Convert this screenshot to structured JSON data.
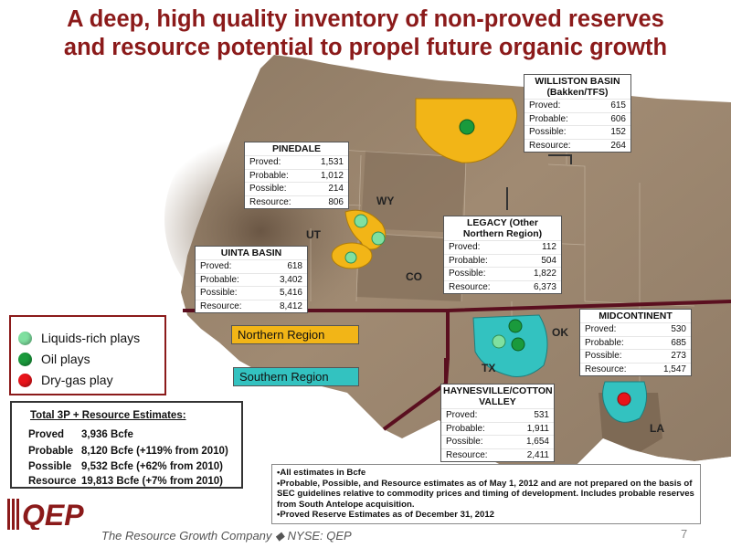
{
  "title_line1": "A deep, high quality inventory of non-proved reserves",
  "title_line2": "and resource potential to propel future organic growth",
  "basins": {
    "williston": {
      "name_line1": "WILLISTON BASIN",
      "name_line2": "(Bakken/TFS)",
      "rows": [
        {
          "label": "Proved:",
          "value": "615"
        },
        {
          "label": "Probable:",
          "value": "606"
        },
        {
          "label": "Possible:",
          "value": "152"
        },
        {
          "label": "Resource:",
          "value": "264"
        }
      ]
    },
    "pinedale": {
      "name_line1": "PINEDALE",
      "rows": [
        {
          "label": "Proved:",
          "value": "1,531"
        },
        {
          "label": "Probable:",
          "value": "1,012"
        },
        {
          "label": "Possible:",
          "value": "214"
        },
        {
          "label": "Resource:",
          "value": "806"
        }
      ]
    },
    "legacy": {
      "name_line1": "LEGACY (Other",
      "name_line2": "Northern Region)",
      "rows": [
        {
          "label": "Proved:",
          "value": "112"
        },
        {
          "label": "Probable:",
          "value": "504"
        },
        {
          "label": "Possible:",
          "value": "1,822"
        },
        {
          "label": "Resource:",
          "value": "6,373"
        }
      ]
    },
    "uinta": {
      "name_line1": "UINTA BASIN",
      "rows": [
        {
          "label": "Proved:",
          "value": "618"
        },
        {
          "label": "Probable:",
          "value": "3,402"
        },
        {
          "label": "Possible:",
          "value": "5,416"
        },
        {
          "label": "Resource:",
          "value": "8,412"
        }
      ]
    },
    "midcontinent": {
      "name_line1": "MIDCONTINENT",
      "rows": [
        {
          "label": "Proved:",
          "value": "530"
        },
        {
          "label": "Probable:",
          "value": "685"
        },
        {
          "label": "Possible:",
          "value": "273"
        },
        {
          "label": "Resource:",
          "value": "1,547"
        }
      ]
    },
    "haynesville": {
      "name_line1": "HAYNESVILLE/COTTON",
      "name_line2": "VALLEY",
      "rows": [
        {
          "label": "Proved:",
          "value": "531"
        },
        {
          "label": "Probable:",
          "value": "1,911"
        },
        {
          "label": "Possible:",
          "value": "1,654"
        },
        {
          "label": "Resource:",
          "value": "2,411"
        }
      ]
    }
  },
  "states": {
    "wy": "WY",
    "ut": "UT",
    "co": "CO",
    "ok": "OK",
    "tx": "TX",
    "la": "LA"
  },
  "legend": {
    "items": [
      {
        "label": "Liquids-rich plays",
        "color": "#7fe0a0"
      },
      {
        "label": "Oil plays",
        "color": "#1a9a3c"
      },
      {
        "label": "Dry-gas play",
        "color": "#e8141a"
      }
    ]
  },
  "regions": {
    "northern": {
      "label": "Northern Region",
      "color": "#f2b517"
    },
    "southern": {
      "label": "Southern Region",
      "color": "#33c2c0"
    }
  },
  "totals": {
    "title": "Total 3P + Resource Estimates:",
    "rows": [
      {
        "label": "Proved",
        "value": "3,936 Bcfe"
      },
      {
        "label": "Probable",
        "value": "8,120 Bcfe (+119% from 2010)"
      },
      {
        "label": "Possible",
        "value": "9,532 Bcfe (+62% from 2010)"
      },
      {
        "label": "Resource",
        "value": "19,813 Bcfe (+7% from 2010)"
      }
    ]
  },
  "notes": [
    "•All estimates in Bcfe",
    "•Probable, Possible, and Resource estimates as of May 1, 2012 and are not prepared on the basis of SEC guidelines relative to commodity prices and timing of development. Includes probable reserves from South Antelope acquisition.",
    "•Proved Reserve Estimates as of December 31, 2012"
  ],
  "footer": {
    "logo_text": "QEP",
    "tagline": "The Resource Growth Company ◆ NYSE: QEP",
    "page_number": "7"
  },
  "colors": {
    "title": "#8b1a1a",
    "map_land": "#9a8670",
    "map_dark": "#6f5c48",
    "play_orange": "#f2b517",
    "play_teal": "#33c2c0",
    "divider": "#5a0f1f"
  },
  "icons": [
    "qep-logo-icon"
  ]
}
